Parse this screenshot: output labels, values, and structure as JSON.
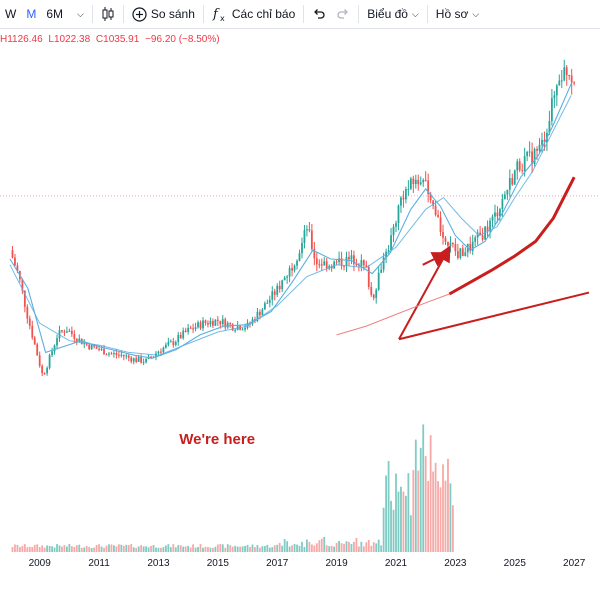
{
  "toolbar": {
    "interval_w": "W",
    "interval_m": "M",
    "interval_6m": "6M",
    "compare_label": "So sánh",
    "indicators_label": "Các chỉ báo",
    "chart_label": "Biểu đồ",
    "profile_label": "Hồ sơ",
    "icons": [
      "chevron-down-icon",
      "candles-icon",
      "plus-circle-icon",
      "fx-icon",
      "undo-icon",
      "redo-icon"
    ]
  },
  "ohlc": {
    "high": "H1126.46",
    "low": "L1022.38",
    "close": "C1035.91",
    "change": "−96.20 (−8.50%)"
  },
  "colors": {
    "up": "#26a69a",
    "down": "#ef5350",
    "ma": "#5aafe0",
    "annotation": "#c81e1e",
    "projection_faint": "#f08080",
    "price_line": "#f7a0a0"
  },
  "annotation_text": "We're here",
  "chart_data": {
    "type": "candlestick",
    "interval": "M",
    "xlim": [
      2008,
      2027.5
    ],
    "ylim_price": [
      200,
      1200
    ],
    "x_ticks": [
      "2009",
      "2011",
      "2013",
      "2015",
      "2017",
      "2019",
      "2021",
      "2023",
      "2025",
      "2027"
    ],
    "last_close": 1035.91,
    "price_path": [
      [
        2008.0,
        850
      ],
      [
        2008.3,
        760
      ],
      [
        2008.6,
        620
      ],
      [
        2008.9,
        500
      ],
      [
        2009.1,
        420
      ],
      [
        2009.3,
        470
      ],
      [
        2009.6,
        560
      ],
      [
        2009.9,
        580
      ],
      [
        2010.3,
        545
      ],
      [
        2010.6,
        525
      ],
      [
        2011.0,
        510
      ],
      [
        2011.4,
        495
      ],
      [
        2011.8,
        490
      ],
      [
        2012.2,
        475
      ],
      [
        2012.6,
        470
      ],
      [
        2013.0,
        505
      ],
      [
        2013.5,
        535
      ],
      [
        2014.0,
        575
      ],
      [
        2014.5,
        600
      ],
      [
        2015.0,
        610
      ],
      [
        2015.5,
        590
      ],
      [
        2016.0,
        590
      ],
      [
        2016.5,
        650
      ],
      [
        2017.0,
        715
      ],
      [
        2017.4,
        780
      ],
      [
        2017.8,
        860
      ],
      [
        2018.0,
        930
      ],
      [
        2018.3,
        810
      ],
      [
        2018.8,
        800
      ],
      [
        2019.3,
        815
      ],
      [
        2019.7,
        820
      ],
      [
        2020.0,
        780
      ],
      [
        2020.2,
        680
      ],
      [
        2020.5,
        800
      ],
      [
        2020.8,
        880
      ],
      [
        2021.2,
        1040
      ],
      [
        2021.6,
        1080
      ],
      [
        2021.9,
        1100
      ],
      [
        2022.2,
        990
      ],
      [
        2022.5,
        930
      ],
      [
        2022.8,
        860
      ],
      [
        2023.1,
        835
      ],
      [
        2023.5,
        860
      ],
      [
        2023.9,
        905
      ],
      [
        2024.3,
        960
      ],
      [
        2024.7,
        1050
      ],
      [
        2025.1,
        1140
      ],
      [
        2025.5,
        1165
      ],
      [
        2025.9,
        1205
      ],
      [
        2026.2,
        1320
      ],
      [
        2026.5,
        1450
      ],
      [
        2026.8,
        1470
      ],
      [
        2027.0,
        1436
      ]
    ],
    "ma_overlays": [
      {
        "points": [
          [
            2008.0,
            820
          ],
          [
            2008.6,
            720
          ],
          [
            2009.2,
            500
          ],
          [
            2009.8,
            520
          ],
          [
            2010.4,
            540
          ],
          [
            2011.0,
            520
          ],
          [
            2011.6,
            505
          ],
          [
            2012.2,
            490
          ],
          [
            2012.8,
            480
          ],
          [
            2013.6,
            510
          ],
          [
            2014.4,
            560
          ],
          [
            2015.2,
            590
          ],
          [
            2016.0,
            595
          ],
          [
            2016.8,
            640
          ],
          [
            2017.5,
            740
          ],
          [
            2018.2,
            850
          ],
          [
            2018.8,
            820
          ],
          [
            2019.5,
            815
          ],
          [
            2020.2,
            770
          ],
          [
            2020.8,
            840
          ],
          [
            2021.5,
            990
          ],
          [
            2022.0,
            1060
          ],
          [
            2022.5,
            1000
          ],
          [
            2023.0,
            900
          ],
          [
            2023.5,
            850
          ],
          [
            2024.0,
            880
          ],
          [
            2024.6,
            980
          ],
          [
            2025.2,
            1100
          ],
          [
            2025.8,
            1175
          ],
          [
            2026.3,
            1280
          ],
          [
            2026.9,
            1420
          ]
        ]
      },
      {
        "points": [
          [
            2008.0,
            800
          ],
          [
            2009.0,
            600
          ],
          [
            2010.0,
            540
          ],
          [
            2011.0,
            525
          ],
          [
            2012.0,
            500
          ],
          [
            2013.0,
            490
          ],
          [
            2014.0,
            530
          ],
          [
            2015.0,
            570
          ],
          [
            2016.0,
            590
          ],
          [
            2017.0,
            660
          ],
          [
            2018.0,
            760
          ],
          [
            2019.0,
            800
          ],
          [
            2020.0,
            790
          ],
          [
            2021.0,
            860
          ],
          [
            2022.0,
            990
          ],
          [
            2022.6,
            1030
          ],
          [
            2023.2,
            960
          ],
          [
            2023.8,
            900
          ],
          [
            2024.4,
            930
          ],
          [
            2025.0,
            1030
          ],
          [
            2025.6,
            1120
          ],
          [
            2026.2,
            1240
          ],
          [
            2026.9,
            1380
          ]
        ]
      }
    ],
    "annotations": [
      {
        "type": "arrow",
        "from": [
          2021.1,
          545
        ],
        "to": [
          2022.8,
          860
        ]
      },
      {
        "type": "arrow",
        "from": [
          2021.9,
          800
        ],
        "to": [
          2022.7,
          840
        ]
      },
      {
        "type": "line",
        "from": [
          2021.1,
          545
        ],
        "to": [
          2027.5,
          705
        ]
      },
      {
        "type": "curve",
        "points": [
          [
            2022.8,
            700
          ],
          [
            2023.5,
            740
          ],
          [
            2024.2,
            780
          ],
          [
            2025.0,
            830
          ],
          [
            2025.7,
            880
          ],
          [
            2026.3,
            960
          ],
          [
            2026.8,
            1060
          ],
          [
            2027.0,
            1100
          ]
        ]
      },
      {
        "type": "faint-curve",
        "points": [
          [
            2019.0,
            560
          ],
          [
            2020.0,
            590
          ],
          [
            2021.0,
            630
          ],
          [
            2022.0,
            670
          ],
          [
            2022.8,
            700
          ]
        ]
      }
    ]
  }
}
